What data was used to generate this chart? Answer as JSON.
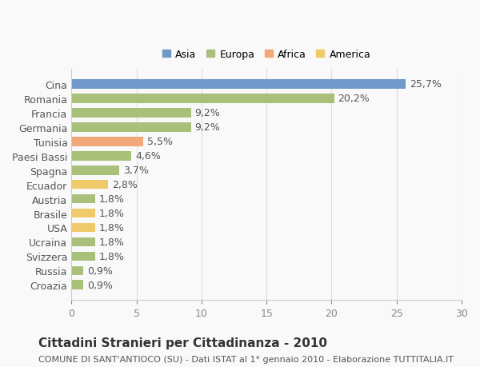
{
  "categories": [
    "Croazia",
    "Russia",
    "Svizzera",
    "Ucraina",
    "USA",
    "Brasile",
    "Austria",
    "Ecuador",
    "Spagna",
    "Paesi Bassi",
    "Tunisia",
    "Germania",
    "Francia",
    "Romania",
    "Cina"
  ],
  "values": [
    0.9,
    0.9,
    1.8,
    1.8,
    1.8,
    1.8,
    1.8,
    2.8,
    3.7,
    4.6,
    5.5,
    9.2,
    9.2,
    20.2,
    25.7
  ],
  "labels": [
    "0,9%",
    "0,9%",
    "1,8%",
    "1,8%",
    "1,8%",
    "1,8%",
    "1,8%",
    "2,8%",
    "3,7%",
    "4,6%",
    "5,5%",
    "9,2%",
    "9,2%",
    "20,2%",
    "25,7%"
  ],
  "colors": [
    "#a8c07a",
    "#a8c07a",
    "#a8c07a",
    "#a8c07a",
    "#f0c96a",
    "#f0c96a",
    "#a8c07a",
    "#f0c96a",
    "#a8c07a",
    "#a8c07a",
    "#f0a878",
    "#a8c07a",
    "#a8c07a",
    "#a8c07a",
    "#7098c8"
  ],
  "legend_keys": [
    "Asia",
    "Europa",
    "Africa",
    "America"
  ],
  "legend_colors": [
    "#7098c8",
    "#a8c07a",
    "#f0a878",
    "#f0c96a"
  ],
  "title": "Cittadini Stranieri per Cittadinanza - 2010",
  "subtitle": "COMUNE DI SANT'ANTIOCO (SU) - Dati ISTAT al 1° gennaio 2010 - Elaborazione TUTTITALIA.IT",
  "xlim": [
    0,
    30
  ],
  "xticks": [
    0,
    5,
    10,
    15,
    20,
    25,
    30
  ],
  "bg_color": "#f9f9f9",
  "grid_color": "#dddddd",
  "label_fontsize": 9,
  "title_fontsize": 11,
  "subtitle_fontsize": 8
}
